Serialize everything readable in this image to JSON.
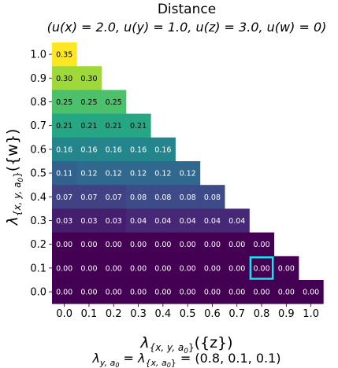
{
  "chart_data": {
    "type": "heatmap",
    "title": "Distance",
    "subtitle": "(u(x) = 2.0, u(y) = 1.0, u(z) = 3.0, u(w) = 0)",
    "xlabel_main": "λ",
    "xlabel_sub": "{x, y, a",
    "xlabel_sub0": "0",
    "xlabel_tail": "}",
    "xlabel_end": "({z})",
    "ylabel_main": "λ",
    "ylabel_sub": "{x, y, a",
    "ylabel_sub0": "0",
    "ylabel_tail": "}",
    "ylabel_end": "({w})",
    "caption": "λy,a0 = λ{x,a0} = (0.8, 0.1, 0.1)",
    "x_ticks": [
      "0.0",
      "0.1",
      "0.2",
      "0.3",
      "0.4",
      "0.5",
      "0.6",
      "0.7",
      "0.8",
      "0.9",
      "1.0"
    ],
    "y_ticks": [
      "1.0",
      "0.9",
      "0.8",
      "0.7",
      "0.6",
      "0.5",
      "0.4",
      "0.3",
      "0.2",
      "0.1",
      "0.0"
    ],
    "colormap": "viridis",
    "vmin": 0.0,
    "vmax": 0.35,
    "rows": [
      [
        "0.35"
      ],
      [
        "0.30",
        "0.30"
      ],
      [
        "0.25",
        "0.25",
        "0.25"
      ],
      [
        "0.21",
        "0.21",
        "0.21",
        "0.21"
      ],
      [
        "0.16",
        "0.16",
        "0.16",
        "0.16",
        "0.16"
      ],
      [
        "0.11",
        "0.12",
        "0.12",
        "0.12",
        "0.12",
        "0.12"
      ],
      [
        "0.07",
        "0.07",
        "0.07",
        "0.08",
        "0.08",
        "0.08",
        "0.08"
      ],
      [
        "0.03",
        "0.03",
        "0.03",
        "0.04",
        "0.04",
        "0.04",
        "0.04",
        "0.04"
      ],
      [
        "0.00",
        "0.00",
        "0.00",
        "0.00",
        "0.00",
        "0.00",
        "0.00",
        "0.00",
        "0.00"
      ],
      [
        "0.00",
        "0.00",
        "0.00",
        "0.00",
        "0.00",
        "0.00",
        "0.00",
        "0.00",
        "0.00",
        "0.00"
      ],
      [
        "0.00",
        "0.00",
        "0.00",
        "0.00",
        "0.00",
        "0.00",
        "0.00",
        "0.00",
        "0.00",
        "0.00",
        "0.00"
      ]
    ],
    "highlight": {
      "x": "0.8",
      "y": "0.1",
      "color": "#19e3f0"
    }
  }
}
